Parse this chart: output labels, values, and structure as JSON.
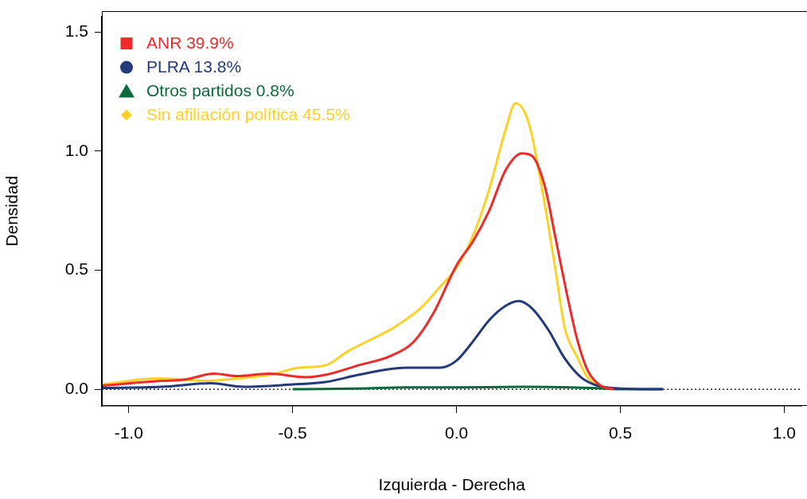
{
  "chart_data": {
    "type": "line",
    "xlabel": "Izquierda - Derecha",
    "ylabel": "Densidad",
    "xlim": [
      -1.082,
      1.053
    ],
    "ylim": [
      -0.07,
      1.565
    ],
    "xticks": [
      {
        "value": -1,
        "label": "-1.0"
      },
      {
        "value": -0.5,
        "label": "-0.5"
      },
      {
        "value": 0,
        "label": "0.0"
      },
      {
        "value": 0.5,
        "label": "0.5"
      },
      {
        "value": 1,
        "label": "1.0"
      }
    ],
    "yticks": [
      {
        "value": 0,
        "label": "0.0"
      },
      {
        "value": 0.5,
        "label": "0.5"
      },
      {
        "value": 1,
        "label": "1.0"
      },
      {
        "value": 1.5,
        "label": "1.5"
      }
    ],
    "grid": false,
    "legend": "top left",
    "ref_lines": [
      {
        "axis": "y",
        "value": 0,
        "line_style": "dotted",
        "color": "#000000"
      }
    ],
    "series": [
      {
        "name": "ANR 39.9%",
        "color": "#ee2a2a",
        "x": [
          -1.08,
          -0.9,
          -0.83,
          -0.74,
          -0.67,
          -0.57,
          -0.46,
          -0.4,
          -0.3,
          -0.2,
          -0.13,
          -0.07,
          0,
          0.05,
          0.1,
          0.15,
          0.2,
          0.23,
          0.27,
          0.3,
          0.34,
          0.37,
          0.4,
          0.44,
          0.48
        ],
        "values": [
          0.015,
          0.035,
          0.04,
          0.065,
          0.055,
          0.065,
          0.05,
          0.06,
          0.1,
          0.14,
          0.2,
          0.32,
          0.52,
          0.62,
          0.75,
          0.92,
          0.99,
          0.98,
          0.85,
          0.65,
          0.38,
          0.2,
          0.08,
          0.015,
          0
        ]
      },
      {
        "name": "PLRA 13.8%",
        "color": "#243a7a",
        "x": [
          -1.08,
          -0.9,
          -0.75,
          -0.65,
          -0.5,
          -0.4,
          -0.3,
          -0.2,
          -0.15,
          -0.05,
          0,
          0.05,
          0.1,
          0.15,
          0.19,
          0.23,
          0.28,
          0.33,
          0.38,
          0.43,
          0.5,
          0.63
        ],
        "values": [
          0.005,
          0.01,
          0.025,
          0.01,
          0.02,
          0.03,
          0.06,
          0.085,
          0.09,
          0.09,
          0.12,
          0.2,
          0.29,
          0.35,
          0.37,
          0.34,
          0.25,
          0.13,
          0.05,
          0.015,
          0.003,
          0
        ]
      },
      {
        "name": "Otros partidos 0.8%",
        "color": "#0b6b3a",
        "x": [
          -0.5,
          -0.3,
          -0.15,
          0,
          0.2,
          0.35,
          0.45,
          0.5,
          0.63
        ],
        "values": [
          0,
          0.003,
          0.008,
          0.008,
          0.01,
          0.008,
          0.003,
          0,
          0
        ]
      },
      {
        "name": "Sin afiliación política 45.5%",
        "color": "#fdd226",
        "x": [
          -1.08,
          -0.91,
          -0.76,
          -0.67,
          -0.57,
          -0.48,
          -0.4,
          -0.33,
          -0.23,
          -0.19,
          -0.11,
          -0.05,
          0,
          0.055,
          0.1,
          0.15,
          0.18,
          0.22,
          0.26,
          0.3,
          0.33,
          0.37,
          0.4,
          0.44,
          0.47
        ],
        "values": [
          0.02,
          0.045,
          0.035,
          0.045,
          0.06,
          0.09,
          0.1,
          0.16,
          0.23,
          0.26,
          0.34,
          0.43,
          0.51,
          0.66,
          0.84,
          1.09,
          1.2,
          1.12,
          0.85,
          0.52,
          0.26,
          0.13,
          0.05,
          0.01,
          0
        ]
      }
    ]
  }
}
